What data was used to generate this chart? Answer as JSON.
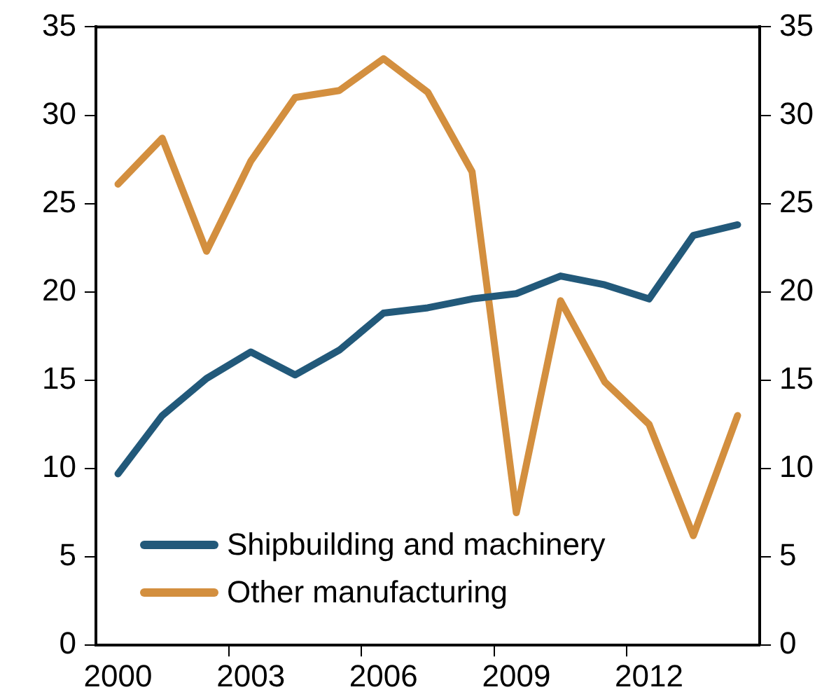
{
  "chart_data": {
    "type": "line",
    "categories": [
      "2000",
      null,
      null,
      "2003",
      null,
      null,
      "2006",
      null,
      null,
      "2009",
      null,
      null,
      "2012",
      null,
      null
    ],
    "series": [
      {
        "name": "Shipbuilding and machinery",
        "color": "#22597a",
        "values": [
          9.7,
          13.0,
          15.1,
          16.6,
          15.3,
          16.7,
          18.8,
          19.1,
          19.6,
          19.9,
          20.9,
          20.4,
          19.6,
          23.2,
          23.8
        ]
      },
      {
        "name": "Other manufacturing",
        "color": "#d38f3f",
        "values": [
          26.1,
          28.7,
          22.3,
          27.4,
          31.0,
          31.4,
          33.2,
          31.3,
          26.8,
          7.5,
          19.5,
          14.9,
          12.5,
          6.2,
          13.0
        ]
      }
    ],
    "ylim": [
      0,
      35
    ],
    "yticks": [
      0,
      5,
      10,
      15,
      20,
      25,
      30,
      35
    ],
    "y2lim": [
      0,
      35
    ],
    "y2ticks": [
      0,
      5,
      10,
      15,
      20,
      25,
      30,
      35
    ],
    "grid": false,
    "legend": "bottom left",
    "marker": "none",
    "line_style": "solid"
  }
}
